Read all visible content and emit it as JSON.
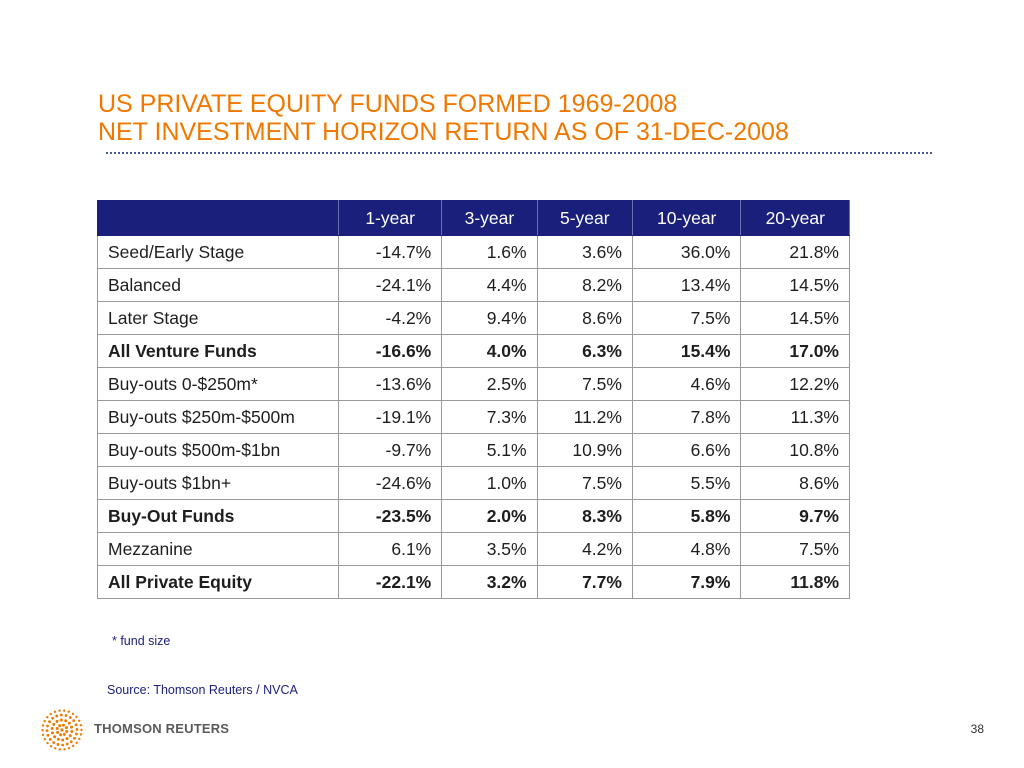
{
  "title": {
    "line1": "US PRIVATE EQUITY FUNDS FORMED 1969-2008",
    "line2": "NET INVESTMENT HORIZON RETURN AS OF 31-DEC-2008"
  },
  "table": {
    "headers": [
      "",
      "1-year",
      "3-year",
      "5-year",
      "10-year",
      "20-year"
    ],
    "rows": [
      {
        "label": "Seed/Early Stage",
        "values": [
          "-14.7%",
          "1.6%",
          "3.6%",
          "36.0%",
          "21.8%"
        ],
        "bold": false
      },
      {
        "label": "Balanced",
        "values": [
          "-24.1%",
          "4.4%",
          "8.2%",
          "13.4%",
          "14.5%"
        ],
        "bold": false
      },
      {
        "label": "Later Stage",
        "values": [
          "-4.2%",
          "9.4%",
          "8.6%",
          "7.5%",
          "14.5%"
        ],
        "bold": false
      },
      {
        "label": "All Venture Funds",
        "values": [
          "-16.6%",
          "4.0%",
          "6.3%",
          "15.4%",
          "17.0%"
        ],
        "bold": true
      },
      {
        "label": "Buy-outs 0-$250m*",
        "values": [
          "-13.6%",
          "2.5%",
          "7.5%",
          "4.6%",
          "12.2%"
        ],
        "bold": false
      },
      {
        "label": "Buy-outs $250m-$500m",
        "values": [
          "-19.1%",
          "7.3%",
          "11.2%",
          "7.8%",
          "11.3%"
        ],
        "bold": false
      },
      {
        "label": "Buy-outs $500m-$1bn",
        "values": [
          "-9.7%",
          "5.1%",
          "10.9%",
          "6.6%",
          "10.8%"
        ],
        "bold": false
      },
      {
        "label": "Buy-outs $1bn+",
        "values": [
          "-24.6%",
          "1.0%",
          "7.5%",
          "5.5%",
          "8.6%"
        ],
        "bold": false
      },
      {
        "label": "Buy-Out Funds",
        "values": [
          "-23.5%",
          "2.0%",
          "8.3%",
          "5.8%",
          "9.7%"
        ],
        "bold": true
      },
      {
        "label": "Mezzanine",
        "values": [
          "6.1%",
          "3.5%",
          "4.2%",
          "4.8%",
          "7.5%"
        ],
        "bold": false
      },
      {
        "label": "All Private Equity",
        "values": [
          "-22.1%",
          "3.2%",
          "7.7%",
          "7.9%",
          "11.8%"
        ],
        "bold": true
      }
    ]
  },
  "footnote": "* fund size",
  "source": "Source: Thomson Reuters / NVCA",
  "logo": {
    "text": "THOMSON REUTERS",
    "icon": "thomson-reuters-dot-sphere-icon",
    "color": "#f07800"
  },
  "page_number": "38",
  "colors": {
    "title": "#f07800",
    "header_bg": "#1a1f7c",
    "note_text": "#1a1f7c"
  }
}
